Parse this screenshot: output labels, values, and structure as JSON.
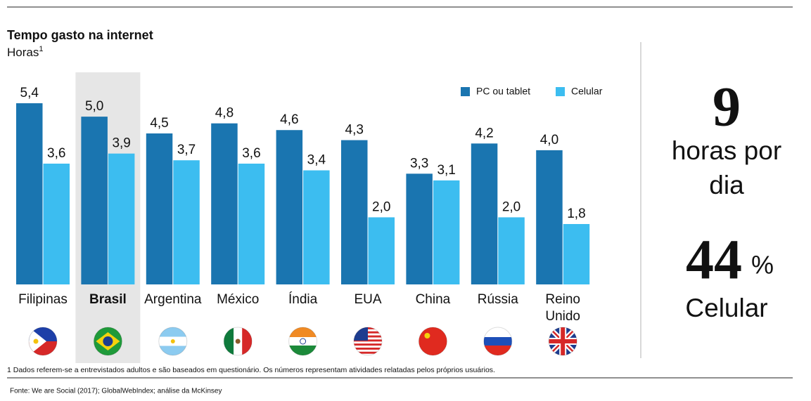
{
  "chart_data": {
    "type": "bar",
    "title": "Tempo gasto na internet",
    "subtitle": "Horas",
    "subtitle_note": "1",
    "categories": [
      "Filipinas",
      "Brasil",
      "Argentina",
      "México",
      "Índia",
      "EUA",
      "China",
      "Rússia",
      "Reino Unido"
    ],
    "highlight_category": "Brasil",
    "legend_position": "top-right",
    "series": [
      {
        "name": "PC ou tablet",
        "color": "#1a75b0",
        "values": [
          5.4,
          5.0,
          4.5,
          4.8,
          4.6,
          4.3,
          3.3,
          4.2,
          4.0
        ],
        "value_labels": [
          "5,4",
          "5,0",
          "4,5",
          "4,8",
          "4,6",
          "4,3",
          "3,3",
          "4,2",
          "4,0"
        ]
      },
      {
        "name": "Celular",
        "color": "#3cbdf0",
        "values": [
          3.6,
          3.9,
          3.7,
          3.6,
          3.4,
          2.0,
          3.1,
          2.0,
          1.8
        ],
        "value_labels": [
          "3,6",
          "3,9",
          "3,7",
          "3,6",
          "3,4",
          "2,0",
          "3,1",
          "2,0",
          "1,8"
        ]
      }
    ],
    "footnote": "1 Dados referem-se a entrevistados adultos e são baseados em questionário. Os números representam atividades relatadas pelos próprios usuários.",
    "source": "Fonte: We are Social (2017); GlobalWebIndex; análise da McKinsey"
  },
  "side_panel": {
    "hours_value": "9",
    "hours_text_1": "horas por",
    "hours_text_2": "dia",
    "share_value": "44",
    "share_unit": "%",
    "share_text": "Celular"
  }
}
